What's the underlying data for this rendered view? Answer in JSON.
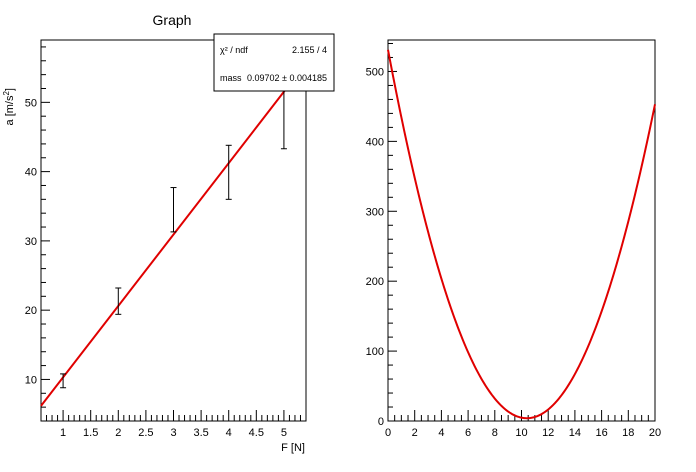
{
  "chart_data": [
    {
      "type": "scatter",
      "title": "Graph",
      "xlabel": "F [N]",
      "ylabel": "a [m/s^2]",
      "xlim": [
        0.6,
        5.4
      ],
      "ylim": [
        4,
        59
      ],
      "x_ticks": [
        "1",
        "1.5",
        "2",
        "2.5",
        "3",
        "3.5",
        "4",
        "4.5",
        "5"
      ],
      "y_ticks": [
        "10",
        "20",
        "30",
        "40",
        "50"
      ],
      "points": [
        {
          "x": 1,
          "y": 9.8,
          "err": 1.0
        },
        {
          "x": 2,
          "y": 21.3,
          "err": 1.9
        },
        {
          "x": 3,
          "y": 34.5,
          "err": 3.2
        },
        {
          "x": 4,
          "y": 39.9,
          "err": 3.9
        },
        {
          "x": 5,
          "y": 48.3,
          "err": 5.0
        }
      ],
      "fit": {
        "slope": 10.307,
        "intercept": 0,
        "color": "#e00000"
      },
      "stats": {
        "chi2_label": "χ² / ndf",
        "chi2_value": "2.155 / 4",
        "param_label": "mass",
        "param_value": "0.09702 ± 0.004185"
      }
    },
    {
      "type": "line",
      "title": "",
      "xlim": [
        0,
        20
      ],
      "ylim": [
        0,
        545
      ],
      "x_ticks": [
        "0",
        "2",
        "4",
        "6",
        "8",
        "10",
        "12",
        "14",
        "16",
        "18",
        "20"
      ],
      "y_ticks": [
        "0",
        "100",
        "200",
        "300",
        "400",
        "500"
      ],
      "curve": {
        "form": "quadratic",
        "vertex_x": 10.4,
        "vertex_y": 4,
        "y_at_0": 531,
        "color": "#e00000"
      }
    }
  ]
}
